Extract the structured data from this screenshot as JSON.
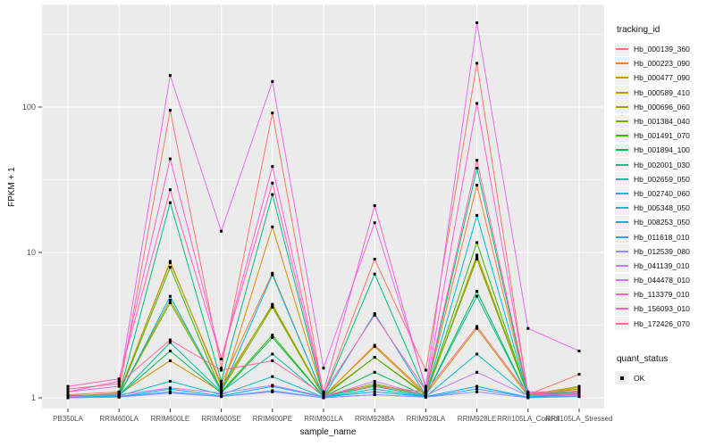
{
  "chart_data": {
    "type": "line",
    "title": "",
    "xlabel": "sample_name",
    "ylabel": "FPKM + 1",
    "y_scale": "log10",
    "y_ticks": [
      1,
      10,
      100
    ],
    "ylim": [
      0.84,
      505
    ],
    "grid": "on",
    "panel_bg": "#EBEBEB",
    "grid_color": "#FFFFFF",
    "tick_text_color": "#4D4D4D",
    "point_marker": {
      "shape": "square",
      "color": "#000000"
    },
    "legend_position": "right",
    "categories": [
      "PB350LA",
      "RRIM600LA",
      "RRIM600LE",
      "RRIM600SE",
      "RRIM600PE",
      "RRIM901LA",
      "RRIM928BA",
      "RRIM928LA",
      "RRIM928LE",
      "RRII105LA_Control",
      "RRII105LA_Stressed"
    ],
    "series": [
      {
        "name": "Hb_000139_360",
        "color": "#F8766D",
        "values": [
          1.05,
          1.1,
          95,
          1.6,
          91,
          1.05,
          9.0,
          1.55,
          200,
          1.05,
          1.45
        ]
      },
      {
        "name": "Hb_000223_090",
        "color": "#EA8331",
        "values": [
          1.02,
          1.08,
          8.5,
          1.25,
          7.2,
          1.02,
          2.3,
          1.08,
          29,
          1.04,
          1.12
        ]
      },
      {
        "name": "Hb_000477_090",
        "color": "#D89000",
        "values": [
          1.03,
          1.06,
          1.8,
          1.1,
          15,
          1.03,
          2.25,
          1.05,
          9.3,
          1.05,
          1.15
        ]
      },
      {
        "name": "Hb_000589_410",
        "color": "#C09B00",
        "values": [
          1.02,
          1.07,
          8.7,
          1.2,
          4.3,
          1.04,
          1.9,
          1.06,
          3.0,
          1.03,
          1.18
        ]
      },
      {
        "name": "Hb_000696_060",
        "color": "#A3A500",
        "values": [
          1.04,
          1.05,
          4.7,
          1.15,
          4.4,
          1.03,
          1.25,
          1.04,
          9.6,
          1.05,
          1.2
        ]
      },
      {
        "name": "Hb_001384_040",
        "color": "#7CAE00",
        "values": [
          1.03,
          1.04,
          4.5,
          1.12,
          4.2,
          1.02,
          1.22,
          1.05,
          9.0,
          1.04,
          1.15
        ]
      },
      {
        "name": "Hb_001491_070",
        "color": "#39B600",
        "values": [
          1.02,
          1.05,
          7.9,
          1.1,
          2.7,
          1.02,
          1.9,
          1.04,
          11.7,
          1.03,
          1.1
        ]
      },
      {
        "name": "Hb_001894_100",
        "color": "#00BB4E",
        "values": [
          1.02,
          1.04,
          2.1,
          1.08,
          2.6,
          1.02,
          1.5,
          1.03,
          5.4,
          1.02,
          1.08
        ]
      },
      {
        "name": "Hb_002001_030",
        "color": "#00BF7D",
        "values": [
          1.03,
          1.05,
          22,
          1.3,
          25,
          1.03,
          7.1,
          1.1,
          38,
          1.05,
          1.1
        ]
      },
      {
        "name": "Hb_002659_050",
        "color": "#00C1A3",
        "values": [
          1.02,
          1.04,
          2.4,
          1.1,
          2.0,
          1.02,
          1.2,
          1.03,
          5.0,
          1.02,
          1.06
        ]
      },
      {
        "name": "Hb_002740_060",
        "color": "#00BFC4",
        "values": [
          1.01,
          1.03,
          1.3,
          1.05,
          1.4,
          1.01,
          1.15,
          1.02,
          2.0,
          1.02,
          1.05
        ]
      },
      {
        "name": "Hb_005348_050",
        "color": "#00BAE0",
        "values": [
          1.02,
          1.03,
          5.0,
          1.1,
          7.0,
          1.02,
          3.8,
          1.04,
          18,
          1.03,
          1.06
        ]
      },
      {
        "name": "Hb_008253_050",
        "color": "#00B0F6",
        "values": [
          1.01,
          1.02,
          1.15,
          1.03,
          1.2,
          1.01,
          1.1,
          1.02,
          1.2,
          1.01,
          1.03
        ]
      },
      {
        "name": "Hb_011618_010",
        "color": "#35A2FF",
        "values": [
          1.0,
          1.02,
          1.1,
          1.02,
          1.12,
          1.0,
          1.05,
          1.01,
          1.15,
          1.01,
          1.02
        ]
      },
      {
        "name": "Hb_012539_080",
        "color": "#9590FF",
        "values": [
          1.0,
          1.01,
          1.08,
          1.02,
          1.1,
          1.0,
          1.05,
          1.01,
          1.1,
          1.0,
          1.02
        ]
      },
      {
        "name": "Hb_041139_010",
        "color": "#C77CFF",
        "values": [
          1.02,
          1.05,
          1.17,
          1.08,
          1.22,
          1.02,
          1.3,
          1.04,
          1.5,
          1.03,
          1.08
        ]
      },
      {
        "name": "Hb_044478_010",
        "color": "#E76BF3",
        "values": [
          1.1,
          1.2,
          165,
          14,
          150,
          1.6,
          16,
          1.2,
          380,
          3.0,
          2.1
        ]
      },
      {
        "name": "Hb_113379_010",
        "color": "#FA62DB",
        "values": [
          1.1,
          1.3,
          44,
          1.85,
          39,
          1.1,
          21,
          1.15,
          106,
          1.1,
          1.1
        ]
      },
      {
        "name": "Hb_156093_010",
        "color": "#FF62BC",
        "values": [
          1.2,
          1.35,
          27,
          1.85,
          30,
          1.08,
          3.7,
          1.12,
          43,
          1.08,
          1.1
        ]
      },
      {
        "name": "Hb_172426_070",
        "color": "#FF6A98",
        "values": [
          1.15,
          1.25,
          2.5,
          1.55,
          1.8,
          1.05,
          1.2,
          1.1,
          3.1,
          1.06,
          1.05
        ]
      }
    ],
    "legend": {
      "color_title": "tracking_id",
      "shape_title": "quant_status",
      "shape_items": [
        {
          "label": "OK"
        }
      ]
    }
  }
}
